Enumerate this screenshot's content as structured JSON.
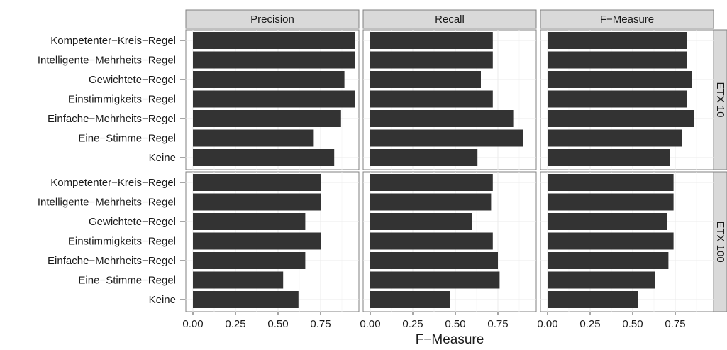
{
  "chart_data": {
    "type": "bar",
    "orientation": "horizontal",
    "categories": [
      "Kompetenter−Kreis−Regel",
      "Intelligente−Mehrheits−Regel",
      "Gewichtete−Regel",
      "Einstimmigkeits−Regel",
      "Einfache−Mehrheits−Regel",
      "Eine−Stimme−Regel",
      "Keine"
    ],
    "columns": [
      "Precision",
      "Recall",
      "F−Measure"
    ],
    "rows": [
      "ETX 10",
      "ETX 100"
    ],
    "xlabel": "F−Measure",
    "xlim": [
      0,
      1.0
    ],
    "xticks": [
      "0.00",
      "0.25",
      "0.50",
      "0.75"
    ],
    "grid": true,
    "bar_color": "#333333",
    "panels": [
      {
        "row": "ETX 10",
        "column": "Precision",
        "values": [
          0.95,
          0.95,
          0.89,
          0.95,
          0.87,
          0.71,
          0.83
        ]
      },
      {
        "row": "ETX 10",
        "column": "Recall",
        "values": [
          0.72,
          0.72,
          0.65,
          0.72,
          0.84,
          0.9,
          0.63
        ]
      },
      {
        "row": "ETX 10",
        "column": "F−Measure",
        "values": [
          0.82,
          0.82,
          0.85,
          0.82,
          0.86,
          0.79,
          0.72
        ]
      },
      {
        "row": "ETX 100",
        "column": "Precision",
        "values": [
          0.75,
          0.75,
          0.66,
          0.75,
          0.66,
          0.53,
          0.62
        ]
      },
      {
        "row": "ETX 100",
        "column": "Recall",
        "values": [
          0.72,
          0.71,
          0.6,
          0.72,
          0.75,
          0.76,
          0.47
        ]
      },
      {
        "row": "ETX 100",
        "column": "F−Measure",
        "values": [
          0.74,
          0.74,
          0.7,
          0.74,
          0.71,
          0.63,
          0.53
        ]
      }
    ]
  }
}
